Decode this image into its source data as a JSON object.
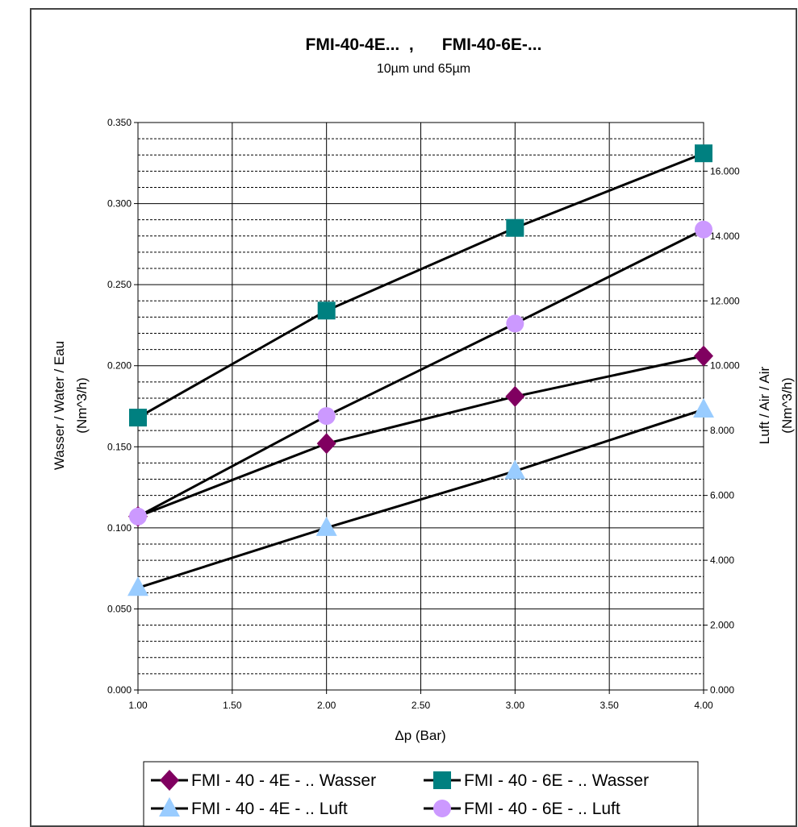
{
  "chart_data": {
    "type": "line",
    "title": "FMI-40-4E...  ,      FMI-40-6E-...",
    "subtitle": "10µm und 65µm",
    "xlabel": "Δp (Bar)",
    "ylabel_left": [
      "Wasser / Water / Eau",
      "(Nm^3/h)"
    ],
    "ylabel_right": [
      "Luft / Air / Air",
      "(Nm^3/h)"
    ],
    "x": [
      1.0,
      2.0,
      3.0,
      4.0
    ],
    "xlim": [
      1.0,
      4.0
    ],
    "ylim_left": [
      0.0,
      0.35
    ],
    "ylim_right": [
      0.0,
      17.5
    ],
    "x_ticks": [
      "1.00",
      "1.50",
      "2.00",
      "2.50",
      "3.00",
      "3.50",
      "4.00"
    ],
    "y_left_ticks": [
      "0.000",
      "0.050",
      "0.100",
      "0.150",
      "0.200",
      "0.250",
      "0.300",
      "0.350"
    ],
    "y_right_ticks": [
      "0.000",
      "2.000",
      "4.000",
      "6.000",
      "8.000",
      "10.000",
      "12.000",
      "14.000",
      "16.000"
    ],
    "grid": true,
    "legend_position": "bottom",
    "series": [
      {
        "name": "FMI - 40 - 4E - .. Wasser",
        "axis": "left",
        "marker": "diamond",
        "color": "#800060",
        "values": [
          0.107,
          0.152,
          0.181,
          0.206
        ]
      },
      {
        "name": "FMI - 40 - 6E - .. Wasser",
        "axis": "left",
        "marker": "square",
        "color": "#008080",
        "values": [
          0.168,
          0.234,
          0.285,
          0.331
        ]
      },
      {
        "name": "FMI - 40 - 4E - .. Luft",
        "axis": "right",
        "marker": "triangle",
        "color": "#99ccff",
        "values": [
          3.15,
          5.0,
          6.75,
          8.65
        ]
      },
      {
        "name": "FMI - 40 - 6E - .. Luft",
        "axis": "right",
        "marker": "circle",
        "color": "#cc99ff",
        "values": [
          5.35,
          8.45,
          11.3,
          14.2
        ]
      }
    ]
  }
}
